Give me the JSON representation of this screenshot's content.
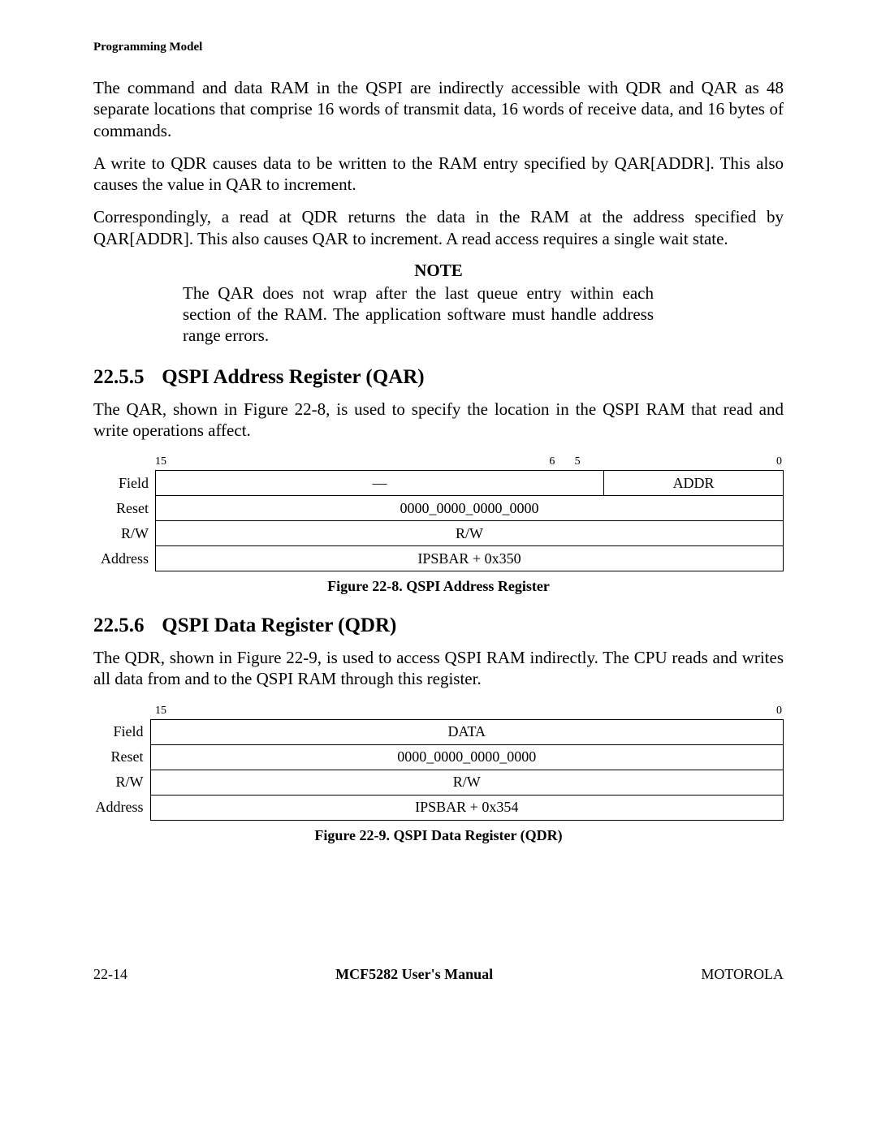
{
  "header": {
    "section_path": "Programming Model"
  },
  "paras": {
    "p1": "The command and data RAM in the QSPI are indirectly accessible with QDR and QAR as 48 separate locations that comprise 16 words of transmit data, 16 words of receive data, and 16 bytes of commands.",
    "p2": "A write to QDR causes data to be written to the RAM entry specified by QAR[ADDR]. This also causes the value in QAR to increment.",
    "p3": "Correspondingly, a read at QDR returns the data in the RAM at the address specified by QAR[ADDR]. This also causes QAR to increment. A read access requires a single wait state."
  },
  "note": {
    "title": "NOTE",
    "body": "The QAR does not wrap after the last queue entry within each section of the RAM. The application software must handle address range errors."
  },
  "sections": {
    "s5": {
      "num": "22.5.5",
      "title": "QSPI Address Register (QAR)",
      "body": "The QAR, shown in Figure 22-8, is used to specify the location in the QSPI RAM that read and write operations affect."
    },
    "s6": {
      "num": "22.5.6",
      "title": "QSPI Data Register (QDR)",
      "body": "The QDR, shown in Figure 22-9, is used to access QSPI RAM indirectly. The CPU reads and writes all data from and to the QSPI RAM through this register."
    }
  },
  "reg_qar": {
    "bit_hi": "15",
    "bit_split_hi": "6",
    "bit_split_lo": "5",
    "bit_lo": "0",
    "row_labels": {
      "field": "Field",
      "reset": "Reset",
      "rw": "R/W",
      "addr": "Address"
    },
    "field_left": "—",
    "field_right": "ADDR",
    "reset": "0000_0000_0000_0000",
    "rw": "R/W",
    "addr": "IPSBAR + 0x350",
    "split_left_pct": 65,
    "caption": "Figure 22-8. QSPI Address Register"
  },
  "reg_qdr": {
    "bit_hi": "15",
    "bit_lo": "0",
    "row_labels": {
      "field": "Field",
      "reset": "Reset",
      "rw": "R/W",
      "addr": "Address"
    },
    "field": "DATA",
    "reset": "0000_0000_0000_0000",
    "rw": "R/W",
    "addr": "IPSBAR + 0x354",
    "caption": "Figure 22-9. QSPI Data Register (QDR)"
  },
  "footer": {
    "left": "22-14",
    "center": "MCF5282 User's Manual",
    "right": "MOTOROLA"
  },
  "colors": {
    "text": "#000000",
    "bg": "#ffffff",
    "border": "#000000"
  }
}
